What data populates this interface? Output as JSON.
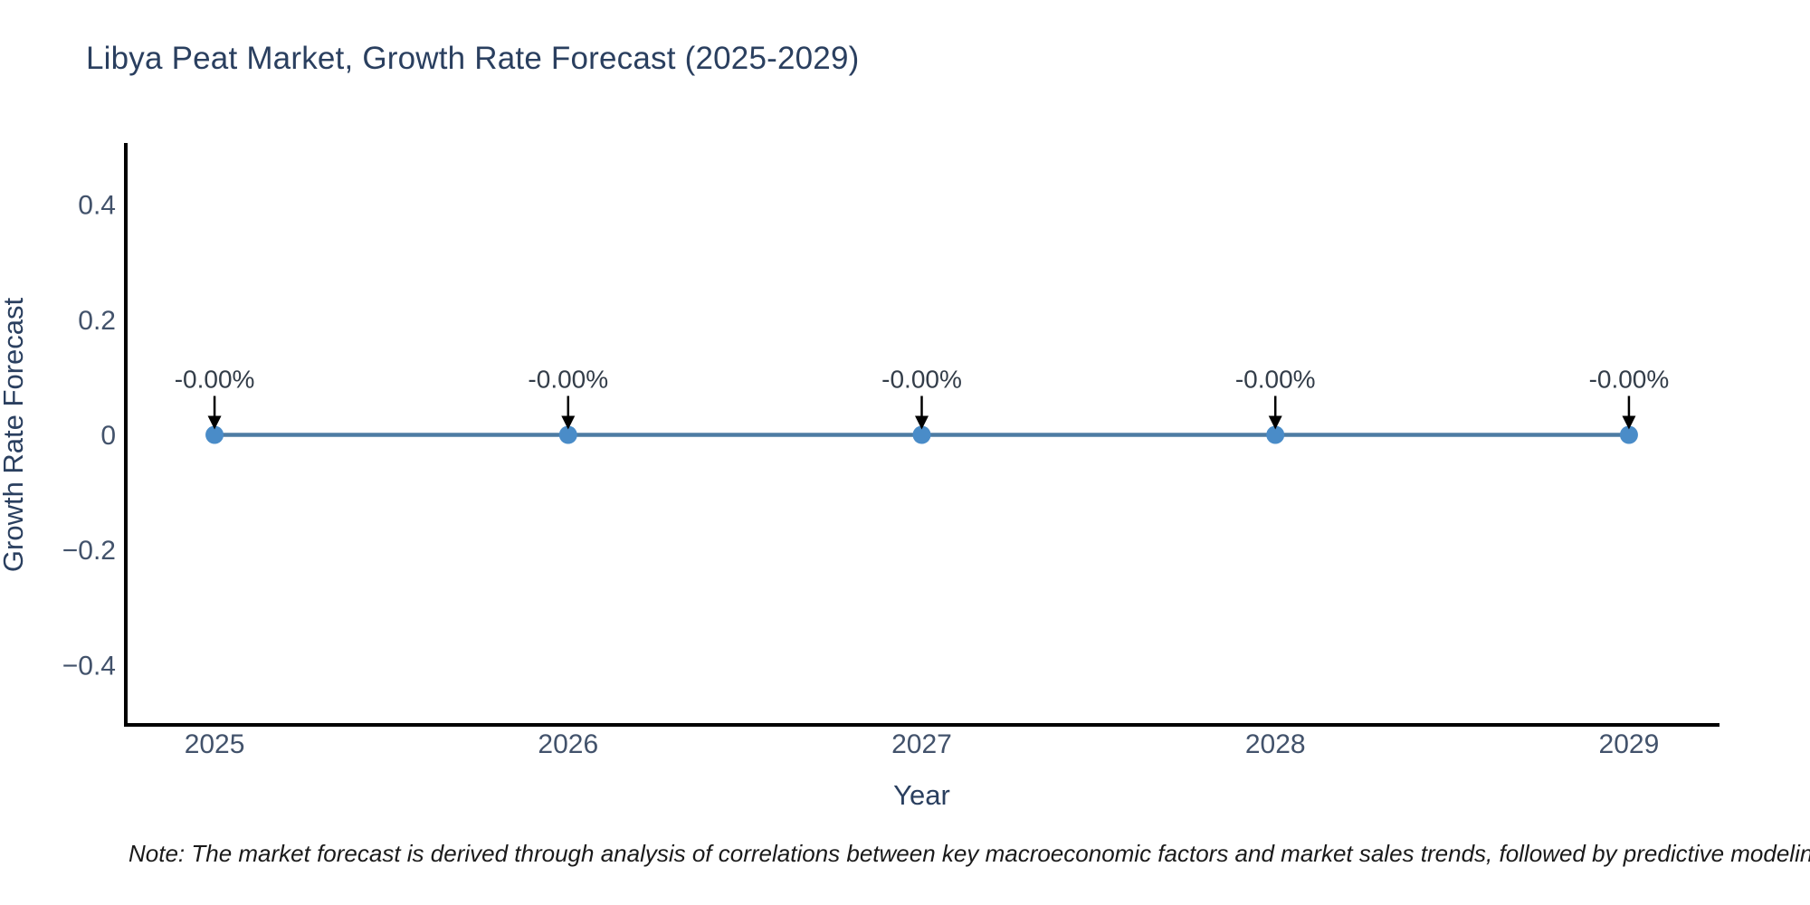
{
  "note": "Note: The market forecast is derived through analysis of correlations between key macroeconomic factors and market sales trends, followed by predictive modeling to project future sales.",
  "colors": {
    "background": "#ffffff",
    "title_text": "#2a3f5f",
    "axis_line": "#000000",
    "tick_text": "#42526b",
    "axis_title_text": "#2a3f5f",
    "series_line": "#4d7ca3",
    "series_marker": "#4a8cc8",
    "annotation_text": "#333d49",
    "annotation_arrow": "#000000",
    "note_text": "#1a1a1a"
  },
  "chart_data": {
    "type": "line",
    "title": "Libya Peat Market, Growth Rate Forecast (2025-2029)",
    "xlabel": "Year",
    "ylabel": "Growth Rate Forecast",
    "x": [
      2025,
      2026,
      2027,
      2028,
      2029
    ],
    "series": [
      {
        "name": "Growth Rate Forecast",
        "values": [
          0,
          0,
          0,
          0,
          0
        ]
      }
    ],
    "point_labels": [
      "-0.00%",
      "-0.00%",
      "-0.00%",
      "-0.00%",
      "-0.00%"
    ],
    "xtick_labels": [
      "2025",
      "2026",
      "2027",
      "2028",
      "2029"
    ],
    "yticks": [
      {
        "value": 0.4,
        "label": "0.4"
      },
      {
        "value": 0.2,
        "label": "0.2"
      },
      {
        "value": 0,
        "label": "0"
      },
      {
        "value": -0.2,
        "label": "−0.2"
      },
      {
        "value": -0.4,
        "label": "−0.4"
      }
    ],
    "xlim": [
      2024.749,
      2029.251
    ],
    "ylim": [
      -0.504,
      0.504
    ],
    "grid": false,
    "legend_position": "none",
    "marker_radius": 10,
    "line_width": 4.5
  }
}
